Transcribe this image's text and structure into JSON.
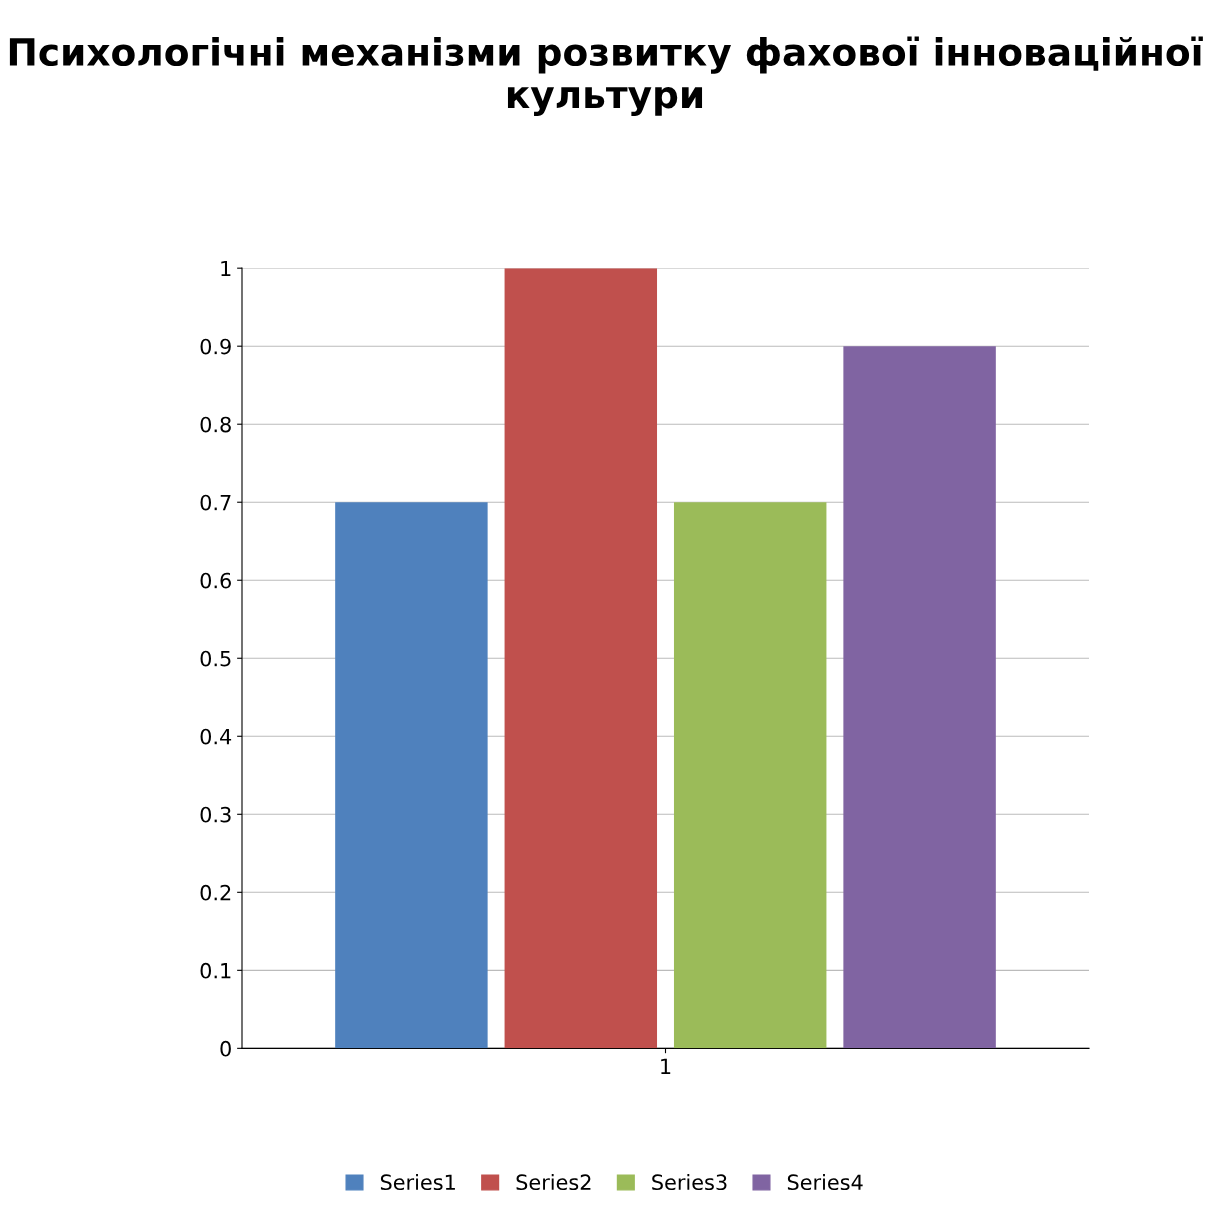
{
  "chart_data": {
    "type": "bar",
    "title": "Психологічні механізми розвитку фахової інноваційної культури",
    "categories": [
      "1"
    ],
    "series": [
      {
        "name": "Series1",
        "color": "#4f81bd",
        "values": [
          0.7
        ]
      },
      {
        "name": "Series2",
        "color": "#c0504d",
        "values": [
          1.0
        ]
      },
      {
        "name": "Series3",
        "color": "#9bbb59",
        "values": [
          0.7
        ]
      },
      {
        "name": "Series4",
        "color": "#8064a2",
        "values": [
          0.9
        ]
      }
    ],
    "ylim": [
      0,
      1
    ],
    "yticks": [
      0,
      0.1,
      0.2,
      0.3,
      0.4,
      0.5,
      0.6,
      0.7,
      0.8,
      0.9,
      1
    ],
    "grid": "y",
    "legend": "bottom"
  }
}
